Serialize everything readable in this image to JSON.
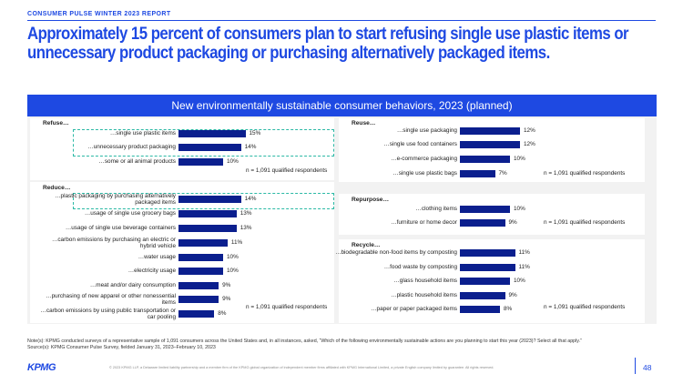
{
  "header": {
    "report_label": "CONSUMER PULSE WINTER 2023 REPORT",
    "headline_line1": "Approximately 15 percent of consumers plan to start refusing single use plastic items or",
    "headline_line2": "unnecessary product packaging or purchasing alternatively packaged items."
  },
  "banner": "New environmentally sustainable consumer behaviors, 2023 (planned)",
  "colors": {
    "accent": "#1e49e2",
    "bar": "#0b1f8e",
    "highlight": "#2bb9a5",
    "panel": "#f2f2f2"
  },
  "chart_data": [
    {
      "type": "bar",
      "orientation": "horizontal",
      "title": "Refuse…",
      "categories": [
        "…single use plastic items",
        "…unnecessary product packaging",
        "…some or all animal products"
      ],
      "values": [
        15,
        14,
        10
      ],
      "value_labels": [
        "15%",
        "14%",
        "10%"
      ],
      "highlighted": [
        0,
        1
      ],
      "note": "n = 1,091 qualified respondents"
    },
    {
      "type": "bar",
      "orientation": "horizontal",
      "title": "Reduce…",
      "categories": [
        "…plastic packaging by purchasing alternatively packaged items",
        "…usage of single use grocery bags",
        "…usage of single use beverage containers",
        "…carbon emissions by purchasing an electric or hybrid vehicle",
        "…water usage",
        "…electricity usage",
        "…meat and/or dairy consumption",
        "…purchasing of new apparel or other nonessential items",
        "…carbon emissions by using public transportation or car pooling"
      ],
      "values": [
        14,
        13,
        13,
        11,
        10,
        10,
        9,
        9,
        8
      ],
      "value_labels": [
        "14%",
        "13%",
        "13%",
        "11%",
        "10%",
        "10%",
        "9%",
        "9%",
        "8%"
      ],
      "highlighted": [
        0
      ],
      "note": "n = 1,091 qualified respondents"
    },
    {
      "type": "bar",
      "orientation": "horizontal",
      "title": "Reuse…",
      "categories": [
        "…single use packaging",
        "…single use food containers",
        "…e-commerce packaging",
        "…single use plastic bags"
      ],
      "values": [
        12,
        12,
        10,
        7
      ],
      "value_labels": [
        "12%",
        "12%",
        "10%",
        "7%"
      ],
      "highlighted": [],
      "note": "n = 1,091 qualified respondents"
    },
    {
      "type": "bar",
      "orientation": "horizontal",
      "title": "Repurpose…",
      "categories": [
        "…clothing items",
        "…furniture or home decor"
      ],
      "values": [
        10,
        9
      ],
      "value_labels": [
        "10%",
        "9%"
      ],
      "highlighted": [],
      "note": "n = 1,091 qualified respondents"
    },
    {
      "type": "bar",
      "orientation": "horizontal",
      "title": "Recycle…",
      "categories": [
        "…biodegradable non-food items by composting",
        "…food waste by composting",
        "…glass household items",
        "…plastic household items",
        "…paper or paper packaged items"
      ],
      "values": [
        11,
        11,
        10,
        9,
        8
      ],
      "value_labels": [
        "11%",
        "11%",
        "10%",
        "9%",
        "8%"
      ],
      "highlighted": [],
      "note": "n = 1,091 qualified respondents"
    }
  ],
  "footer": {
    "note": "Note(s):    KPMG conducted surveys of a representative sample of 1,091 consumers across the United States and, in all instances, asked, “Which of the following environmentally sustainable actions are you planning to start this year (2023)? Select all that apply.”",
    "source": "Source(s):  KPMG Consumer Pulse Survey, fielded January 31, 2023–February 10, 2023",
    "logo": "KPMG",
    "copyright": "© 2023 KPMG LLP, a Delaware limited liability partnership and a member firm of the KPMG global organization of independent member firms affiliated with KPMG International Limited, a private English company limited by guarantee. All rights reserved.",
    "page_number": "48"
  }
}
